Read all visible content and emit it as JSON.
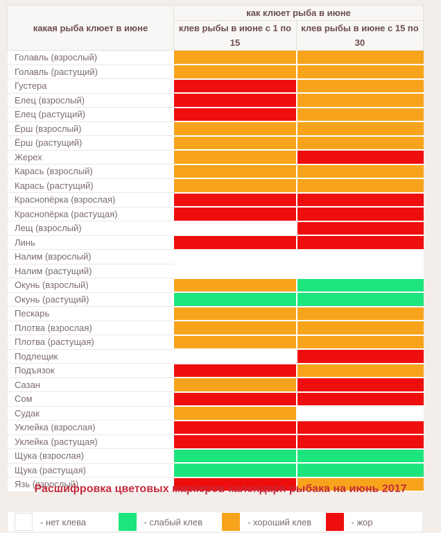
{
  "table": {
    "header": {
      "fish": "какая рыба клюет в июне",
      "group": "как клюет рыба в июне",
      "first_half": "клев рыбы в июне с 1 по 15",
      "second_half": "клев рыбы в июне с 15 по 30"
    }
  },
  "chart_data": {
    "type": "heatmap",
    "title": "Расшифровка цветовых маркеров календаря рыбака на июнь 2017",
    "columns": [
      "клев рыбы в июне с 1 по 15",
      "клев рыбы в июне с 15 по 30"
    ],
    "legend": [
      {
        "key": "none",
        "label": "- нет клева",
        "color": "#ffffff"
      },
      {
        "key": "weak",
        "label": "- слабый клев",
        "color": "#1de57d"
      },
      {
        "key": "good",
        "label": "- хороший клев",
        "color": "#f7a41c"
      },
      {
        "key": "feast",
        "label": "- жор",
        "color": "#ef0e0e"
      }
    ],
    "rows": [
      {
        "name": "Голавль (взрослый)",
        "first": "good",
        "second": "good"
      },
      {
        "name": "Голавль (растущий)",
        "first": "good",
        "second": "good"
      },
      {
        "name": "Густера",
        "first": "feast",
        "second": "good"
      },
      {
        "name": "Елец (взрослый)",
        "first": "feast",
        "second": "good"
      },
      {
        "name": "Елец (растущий)",
        "first": "feast",
        "second": "good"
      },
      {
        "name": "Ёрш (взрослый)",
        "first": "good",
        "second": "good"
      },
      {
        "name": "Ёрш (растущий)",
        "first": "good",
        "second": "good"
      },
      {
        "name": "Жерех",
        "first": "good",
        "second": "feast"
      },
      {
        "name": "Карась (взрослый)",
        "first": "good",
        "second": "good"
      },
      {
        "name": "Карась (растущий)",
        "first": "good",
        "second": "good"
      },
      {
        "name": "Краснопёрка (взрослая)",
        "first": "feast",
        "second": "feast"
      },
      {
        "name": "Краснопёрка (растущая)",
        "first": "feast",
        "second": "feast"
      },
      {
        "name": "Лещ (взрослый)",
        "first": "none",
        "second": "feast"
      },
      {
        "name": "Линь",
        "first": "feast",
        "second": "feast"
      },
      {
        "name": "Налим (взрослый)",
        "first": "none",
        "second": "none"
      },
      {
        "name": "Налим (растущий)",
        "first": "none",
        "second": "none"
      },
      {
        "name": "Окунь (взрослый)",
        "first": "good",
        "second": "weak"
      },
      {
        "name": "Окунь (растущий)",
        "first": "weak",
        "second": "weak"
      },
      {
        "name": "Пескарь",
        "first": "good",
        "second": "good"
      },
      {
        "name": "Плотва (взрослая)",
        "first": "good",
        "second": "good"
      },
      {
        "name": "Плотва (растущая)",
        "first": "good",
        "second": "good"
      },
      {
        "name": "Подлещик",
        "first": "none",
        "second": "feast"
      },
      {
        "name": "Подъязок",
        "first": "feast",
        "second": "good"
      },
      {
        "name": "Сазан",
        "first": "good",
        "second": "feast"
      },
      {
        "name": "Сом",
        "first": "feast",
        "second": "feast"
      },
      {
        "name": "Судак",
        "first": "good",
        "second": "none"
      },
      {
        "name": "Уклейка (взрослая)",
        "first": "feast",
        "second": "feast"
      },
      {
        "name": "Уклейка (растущая)",
        "first": "feast",
        "second": "feast"
      },
      {
        "name": "Щука (взрослая)",
        "first": "weak",
        "second": "weak"
      },
      {
        "name": "Щука (растущая)",
        "first": "weak",
        "second": "weak"
      },
      {
        "name": "Язь (взрослый)",
        "first": "feast",
        "second": "good"
      }
    ]
  }
}
